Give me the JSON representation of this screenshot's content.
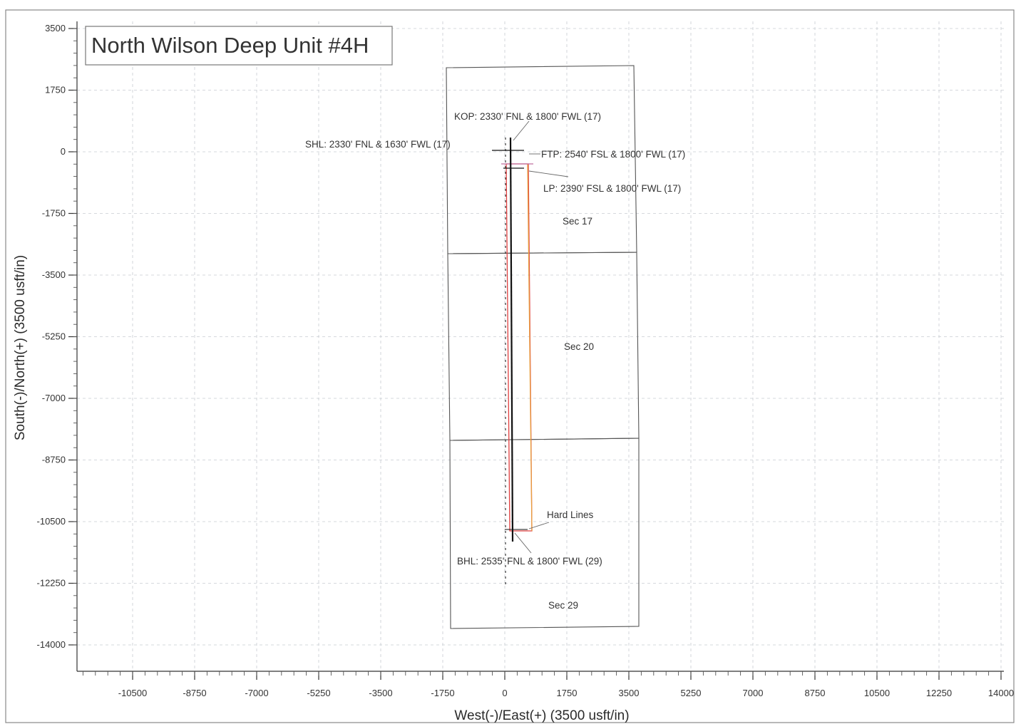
{
  "title": "North Wilson Deep Unit #4H",
  "x_axis": {
    "label": "West(-)/East(+) (3500 usft/in)",
    "ticks": [
      -10500,
      -8750,
      -7000,
      -5250,
      -3500,
      -1750,
      0,
      1750,
      3500,
      5250,
      7000,
      8750,
      10500,
      12250,
      14000
    ]
  },
  "y_axis": {
    "label": "South(-)/North(+) (3500 usft/in)",
    "ticks": [
      3500,
      1750,
      0,
      -1750,
      -3500,
      -5250,
      -7000,
      -8750,
      -10500,
      -12250,
      -14000
    ]
  },
  "annotations": {
    "kop": "KOP: 2330' FNL & 1800' FWL (17)",
    "shl": "SHL: 2330' FNL & 1630' FWL (17)",
    "ftp": "FTP: 2540' FSL & 1800' FWL (17)",
    "lp": "LP: 2390' FSL & 1800' FWL (17)",
    "sec17": "Sec 17",
    "sec20": "Sec 20",
    "hard_lines": "Hard Lines",
    "bhl": "BHL: 2535' FNL & 1800' FWL (29)",
    "sec29": "Sec 29"
  },
  "colors": {
    "wellbore": "#111111",
    "hard_line_red": "#e04040",
    "hard_line_orange": "#e8a040",
    "hard_line_pink": "#c070a0",
    "grid": "#c8ccd2",
    "section_lines": "#555555"
  }
}
